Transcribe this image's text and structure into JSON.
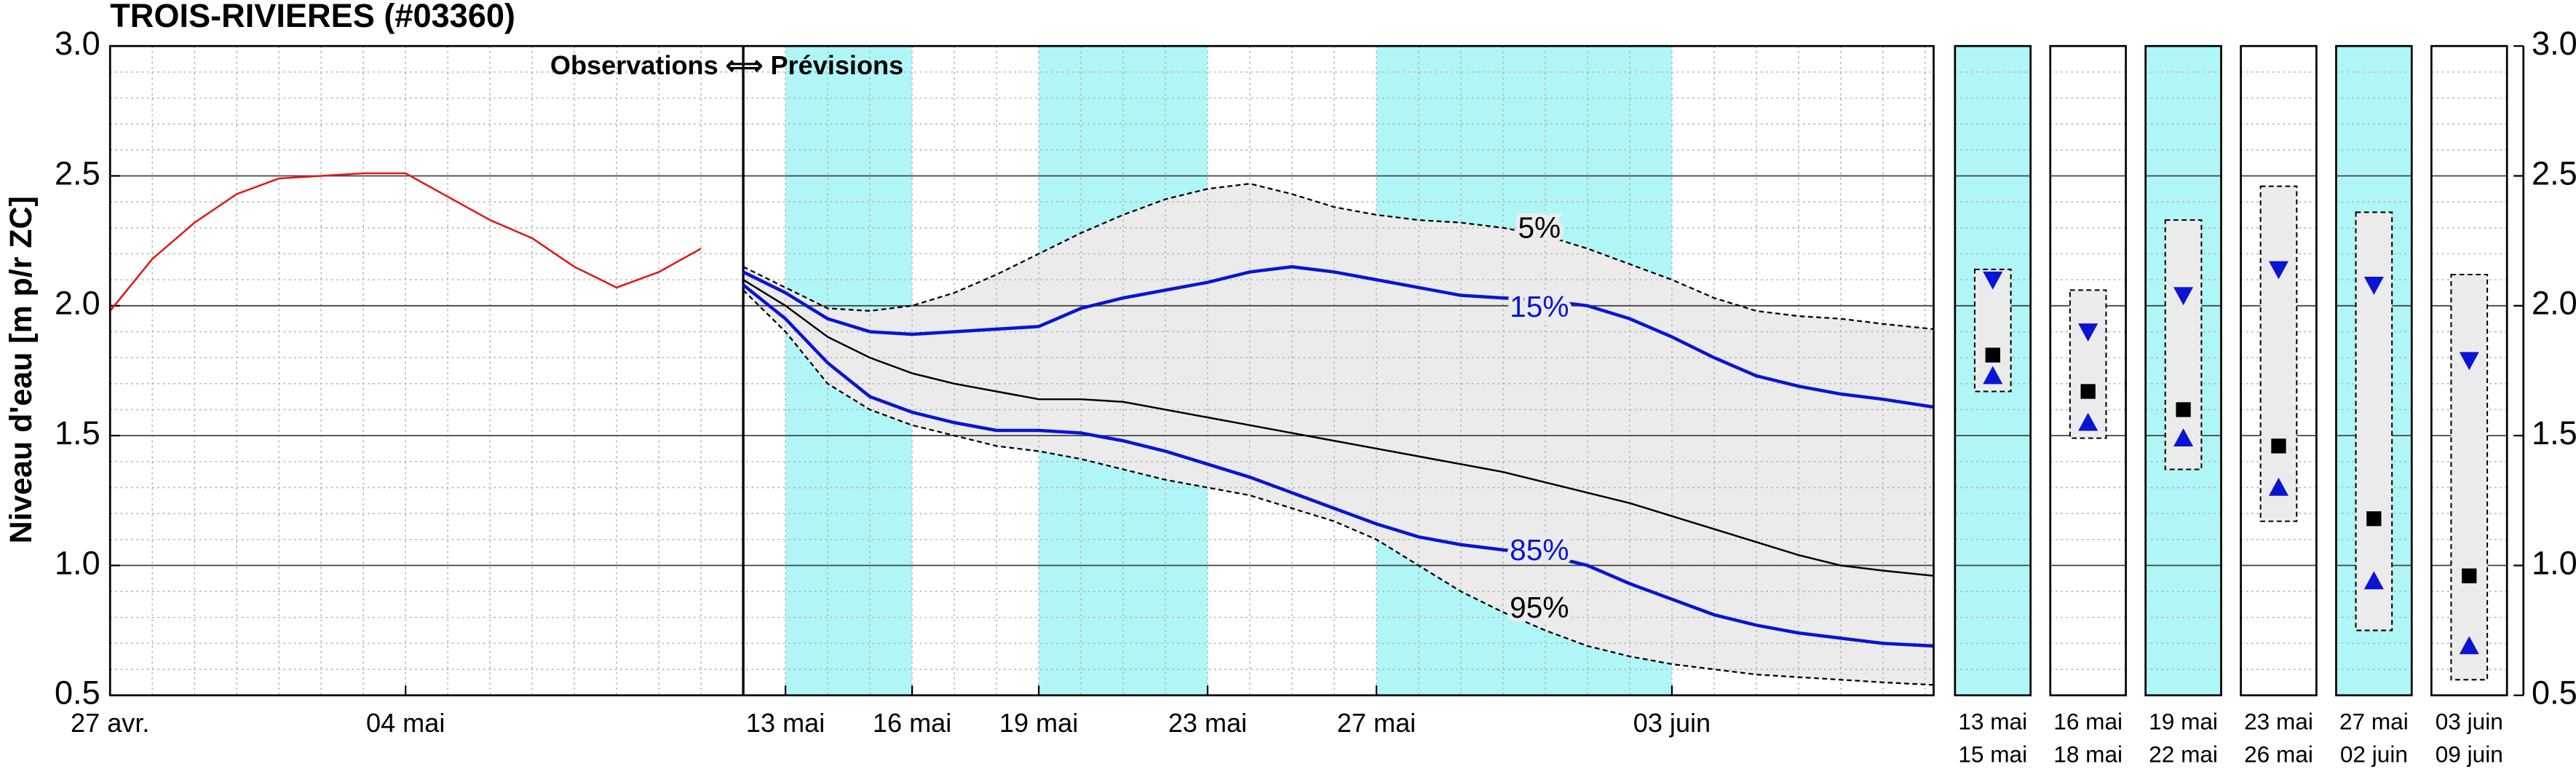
{
  "chart_data": [
    {
      "type": "line",
      "title": "TROIS-RIVIERES (#03360)",
      "ylabel": "Niveau d'eau [m p/r ZC]",
      "annotation": "Observations ⟺ Prévisions",
      "xlim": [
        0,
        43.2
      ],
      "xticks": [
        {
          "value": 0,
          "label": "27 avr."
        },
        {
          "value": 7,
          "label": "04 mai"
        },
        {
          "value": 16,
          "label": "13 mai"
        },
        {
          "value": 19,
          "label": "16 mai"
        },
        {
          "value": 22,
          "label": "19 mai"
        },
        {
          "value": 26,
          "label": "23 mai"
        },
        {
          "value": 30,
          "label": "27 mai"
        },
        {
          "value": 37,
          "label": "03 juin"
        }
      ],
      "ylim": [
        0.5,
        3
      ],
      "yticks": [
        0.5,
        {
          "value": 1,
          "label": "1.0"
        },
        1.5,
        {
          "value": 2,
          "label": "2.0"
        },
        2.5,
        {
          "value": 3,
          "label": "3.0"
        }
      ],
      "grid": true,
      "minor_grid": true,
      "divider_x": 15,
      "shaded_ranges": [
        [
          16,
          19
        ],
        [
          22,
          26
        ],
        [
          30,
          37
        ]
      ],
      "shade_color": "#b0f6f6",
      "band_color": "#ebebeb",
      "fill_between": true,
      "series": [
        {
          "color": "#e8130f",
          "dash": false,
          "x": [
            0,
            1,
            2,
            3,
            4,
            5,
            6,
            7,
            8,
            9,
            10,
            11,
            12,
            13,
            14
          ],
          "values": [
            1.98,
            2.18,
            2.32,
            2.43,
            2.49,
            2.5,
            2.51,
            2.51,
            2.42,
            2.33,
            2.26,
            2.15,
            2.07,
            2.13,
            2.22
          ]
        },
        {
          "name": "5%",
          "color": "#000000",
          "dash": true,
          "x": [
            15,
            16,
            17,
            18,
            19,
            20,
            21,
            22,
            23,
            24,
            25,
            26,
            27,
            28,
            29,
            30,
            31,
            32,
            33,
            34,
            35,
            36,
            37,
            38,
            39,
            40,
            41,
            42,
            43.2
          ],
          "values": [
            2.15,
            2.07,
            1.99,
            1.98,
            2.0,
            2.05,
            2.12,
            2.2,
            2.28,
            2.35,
            2.41,
            2.45,
            2.47,
            2.43,
            2.38,
            2.35,
            2.33,
            2.32,
            2.3,
            2.27,
            2.22,
            2.16,
            2.1,
            2.03,
            1.98,
            1.96,
            1.95,
            1.93,
            1.91
          ]
        },
        {
          "name": "15%",
          "color": "#0a14d2",
          "dash": false,
          "x": [
            15,
            16,
            17,
            18,
            19,
            20,
            21,
            22,
            23,
            24,
            25,
            26,
            27,
            28,
            29,
            30,
            31,
            32,
            33,
            34,
            35,
            36,
            37,
            38,
            39,
            40,
            41,
            42,
            43.2
          ],
          "values": [
            2.13,
            2.05,
            1.95,
            1.9,
            1.89,
            1.9,
            1.91,
            1.92,
            1.99,
            2.03,
            2.06,
            2.09,
            2.13,
            2.15,
            2.13,
            2.1,
            2.07,
            2.04,
            2.03,
            2.02,
            2.0,
            1.95,
            1.88,
            1.8,
            1.73,
            1.69,
            1.66,
            1.64,
            1.61
          ]
        },
        {
          "color": "#000000",
          "dash": false,
          "x": [
            15,
            16,
            17,
            18,
            19,
            20,
            21,
            22,
            23,
            24,
            25,
            26,
            27,
            28,
            29,
            30,
            31,
            32,
            33,
            34,
            35,
            36,
            37,
            38,
            39,
            40,
            41,
            42,
            43.2
          ],
          "values": [
            2.1,
            2.0,
            1.88,
            1.8,
            1.74,
            1.7,
            1.67,
            1.64,
            1.64,
            1.63,
            1.6,
            1.57,
            1.54,
            1.51,
            1.48,
            1.45,
            1.42,
            1.39,
            1.36,
            1.32,
            1.28,
            1.24,
            1.19,
            1.14,
            1.09,
            1.04,
            1.0,
            0.98,
            0.96
          ]
        },
        {
          "name": "85%",
          "color": "#0a14d2",
          "dash": false,
          "x": [
            15,
            16,
            17,
            18,
            19,
            20,
            21,
            22,
            23,
            24,
            25,
            26,
            27,
            28,
            29,
            30,
            31,
            32,
            33,
            34,
            35,
            36,
            37,
            38,
            39,
            40,
            41,
            42,
            43.2
          ],
          "values": [
            2.08,
            1.95,
            1.78,
            1.65,
            1.59,
            1.55,
            1.52,
            1.52,
            1.51,
            1.48,
            1.44,
            1.39,
            1.34,
            1.28,
            1.22,
            1.16,
            1.11,
            1.08,
            1.06,
            1.04,
            1.0,
            0.93,
            0.87,
            0.81,
            0.77,
            0.74,
            0.72,
            0.7,
            0.69
          ]
        },
        {
          "name": "95%",
          "color": "#000000",
          "dash": true,
          "x": [
            15,
            16,
            17,
            18,
            19,
            20,
            21,
            22,
            23,
            24,
            25,
            26,
            27,
            28,
            29,
            30,
            31,
            32,
            33,
            34,
            35,
            36,
            37,
            38,
            39,
            40,
            41,
            42,
            43.2
          ],
          "values": [
            2.06,
            1.9,
            1.7,
            1.6,
            1.54,
            1.5,
            1.46,
            1.44,
            1.41,
            1.37,
            1.33,
            1.3,
            1.27,
            1.22,
            1.17,
            1.1,
            1.0,
            0.9,
            0.82,
            0.75,
            0.69,
            0.65,
            0.62,
            0.6,
            0.58,
            0.57,
            0.56,
            0.55,
            0.54
          ]
        }
      ]
    },
    {
      "type": "range",
      "categories": [
        [
          "13 mai",
          "15 mai"
        ],
        [
          "16 mai",
          "18 mai"
        ],
        [
          "19 mai",
          "22 mai"
        ],
        [
          "23 mai",
          "26 mai"
        ],
        [
          "27 mai",
          "02 juin"
        ],
        [
          "03 juin",
          "09 juin"
        ]
      ],
      "shaded": [
        true,
        false,
        true,
        false,
        true,
        false
      ],
      "shade_color": "#b0f6f6",
      "ylim": [
        0.5,
        3
      ],
      "yticks": [
        0.5,
        {
          "value": 1,
          "label": "1.0"
        },
        1.5,
        {
          "value": 2,
          "label": "2.0"
        },
        2.5,
        {
          "value": 3,
          "label": "3.0"
        }
      ],
      "upper": [
        2.14,
        2.06,
        2.33,
        2.46,
        2.36,
        2.12
      ],
      "p15": [
        2.1,
        1.9,
        2.04,
        2.14,
        2.08,
        1.79
      ],
      "median": [
        1.81,
        1.67,
        1.6,
        1.46,
        1.18,
        0.96
      ],
      "p85": [
        1.73,
        1.55,
        1.49,
        1.3,
        0.94,
        0.69
      ],
      "lower": [
        1.67,
        1.49,
        1.37,
        1.17,
        0.75,
        0.56
      ],
      "marker_color": "#0a14d2",
      "box_color": "#ebebeb"
    }
  ]
}
